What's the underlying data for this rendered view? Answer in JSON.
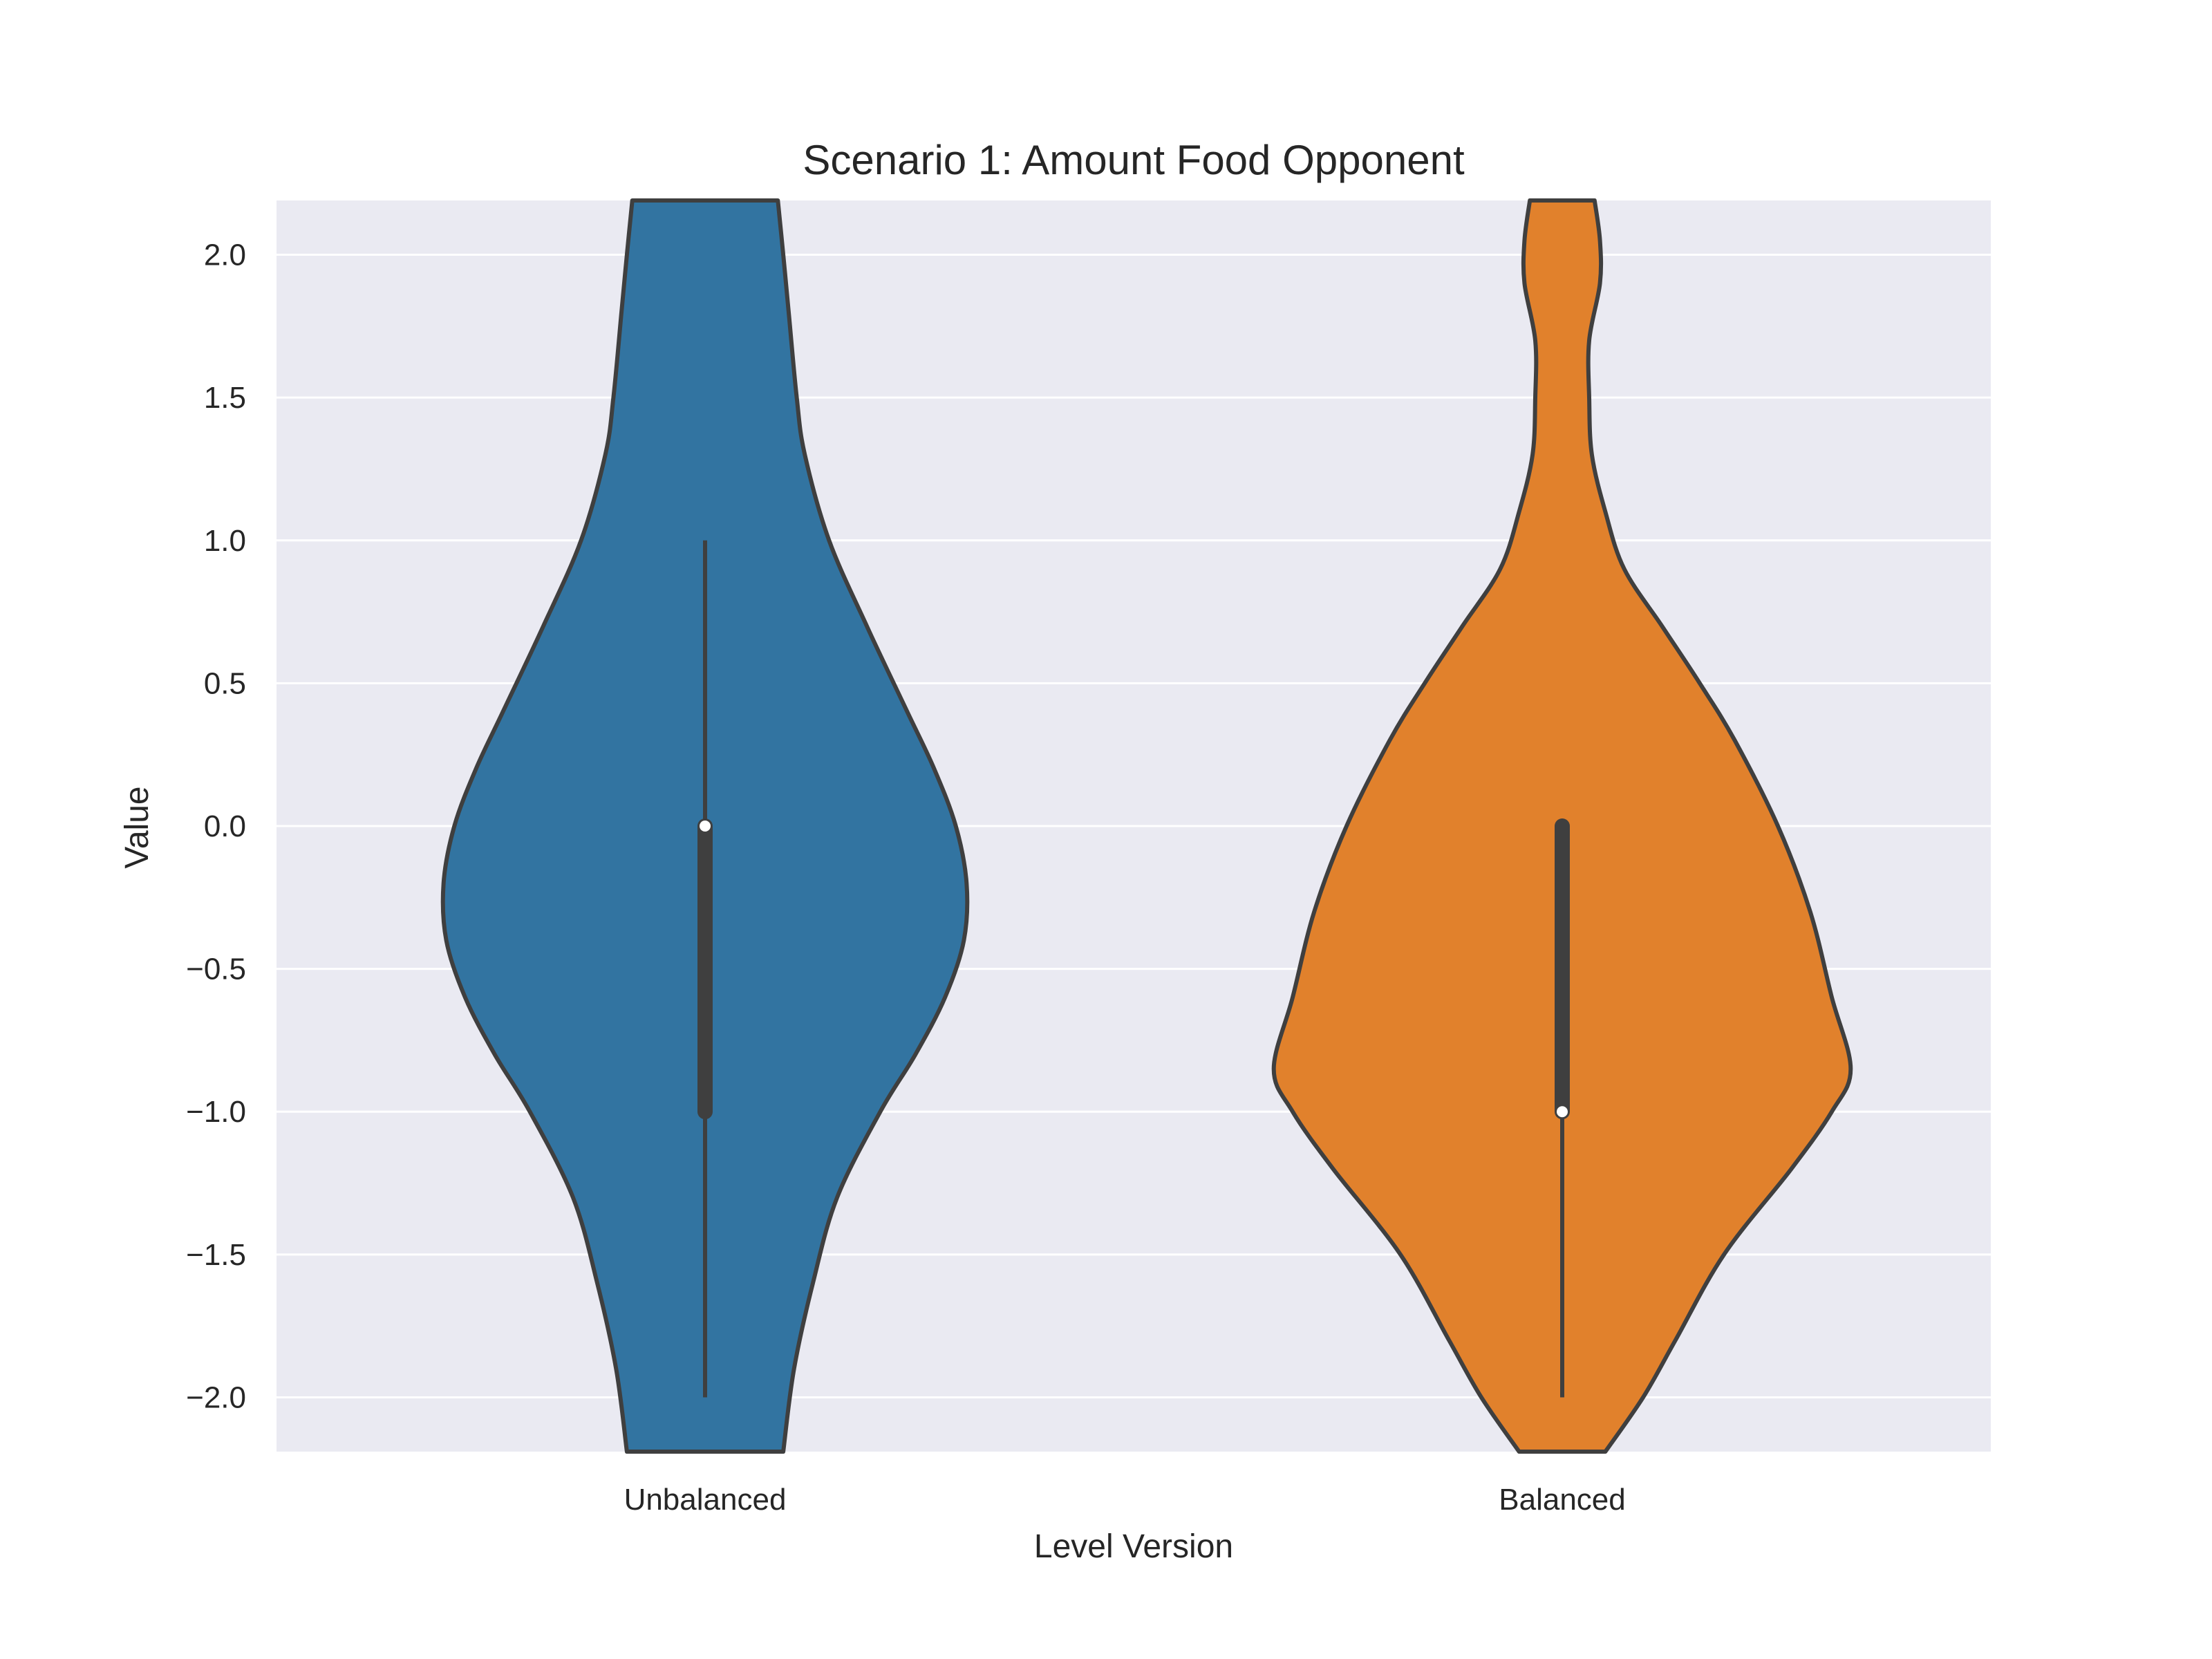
{
  "chart_data": {
    "type": "violin",
    "title": "Scenario 1: Amount Food Opponent",
    "xlabel": "Level Version",
    "ylabel": "Value",
    "ylim": [
      -2.19,
      2.19
    ],
    "yticks": [
      2.0,
      1.5,
      1.0,
      0.5,
      0.0,
      -0.5,
      -1.0,
      -1.5,
      -2.0
    ],
    "ytick_labels": [
      "2.0",
      "1.5",
      "1.0",
      "0.5",
      "0.0",
      "−0.5",
      "−1.0",
      "−1.5",
      "−2.0"
    ],
    "grid": true,
    "background_color": "#eaeaf2",
    "categories": [
      "Unbalanced",
      "Balanced"
    ],
    "violins": [
      {
        "category": "Unbalanced",
        "color": "#3274a1",
        "median": 0.0,
        "q1": -1.0,
        "q3": 0.0,
        "whisker_low": -2.0,
        "whisker_high": 1.0,
        "density_profile": [
          [
            2.19,
            0.27
          ],
          [
            2.0,
            0.29
          ],
          [
            1.8,
            0.31
          ],
          [
            1.5,
            0.34
          ],
          [
            1.3,
            0.37
          ],
          [
            1.0,
            0.46
          ],
          [
            0.7,
            0.6
          ],
          [
            0.4,
            0.75
          ],
          [
            0.2,
            0.85
          ],
          [
            0.0,
            0.93
          ],
          [
            -0.2,
            0.97
          ],
          [
            -0.4,
            0.96
          ],
          [
            -0.6,
            0.89
          ],
          [
            -0.8,
            0.78
          ],
          [
            -1.0,
            0.65
          ],
          [
            -1.3,
            0.49
          ],
          [
            -1.6,
            0.4
          ],
          [
            -1.9,
            0.33
          ],
          [
            -2.19,
            0.29
          ]
        ]
      },
      {
        "category": "Balanced",
        "color": "#e1812c",
        "median": -1.0,
        "q1": -1.0,
        "q3": 0.0,
        "whisker_low": -2.0,
        "whisker_high": 0.0,
        "density_profile": [
          [
            2.19,
            0.12
          ],
          [
            2.05,
            0.14
          ],
          [
            1.9,
            0.14
          ],
          [
            1.7,
            0.1
          ],
          [
            1.5,
            0.1
          ],
          [
            1.3,
            0.11
          ],
          [
            1.1,
            0.16
          ],
          [
            0.9,
            0.23
          ],
          [
            0.7,
            0.37
          ],
          [
            0.5,
            0.51
          ],
          [
            0.3,
            0.64
          ],
          [
            0.0,
            0.8
          ],
          [
            -0.3,
            0.92
          ],
          [
            -0.6,
            1.0
          ],
          [
            -0.85,
            1.07
          ],
          [
            -1.0,
            1.0
          ],
          [
            -1.2,
            0.85
          ],
          [
            -1.5,
            0.6
          ],
          [
            -1.8,
            0.42
          ],
          [
            -2.0,
            0.3
          ],
          [
            -2.19,
            0.16
          ]
        ]
      }
    ]
  }
}
